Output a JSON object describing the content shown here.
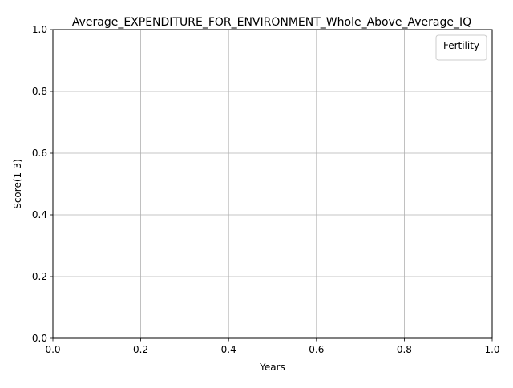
{
  "chart_data": {
    "type": "line",
    "title": "Average_EXPENDITURE_FOR_ENVIRONMENT_Whole_Above_Average_IQ",
    "xlabel": "Years",
    "ylabel": "Score(1-3)",
    "xlim": [
      0.0,
      1.0
    ],
    "ylim": [
      0.0,
      1.0
    ],
    "x_ticks": [
      "0.0",
      "0.2",
      "0.4",
      "0.6",
      "0.8",
      "1.0"
    ],
    "y_ticks": [
      "0.0",
      "0.2",
      "0.4",
      "0.6",
      "0.8",
      "1.0"
    ],
    "grid": true,
    "legend": {
      "title": "Fertility",
      "placement": "top-right",
      "entries": []
    },
    "series": []
  }
}
